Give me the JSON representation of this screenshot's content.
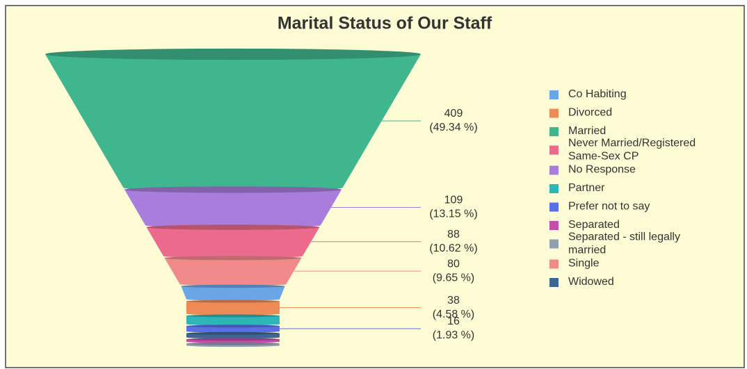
{
  "chart_data": {
    "type": "funnel",
    "title": "Marital Status of Our Staff",
    "categories": [
      "Married",
      "No Response",
      "Never Married/Registered Same-Sex CP",
      "Single",
      "Co Habiting",
      "Divorced",
      "Partner",
      "Prefer not to say",
      "Widowed",
      "Separated",
      "Separated - still legally married"
    ],
    "values": [
      409,
      109,
      88,
      80,
      40,
      38,
      25,
      16,
      12,
      7,
      5
    ],
    "percent_labels": [
      "(49.34 %)",
      "(13.15 %)",
      "(10.62 %)",
      "(9.65 %)",
      null,
      "(4.58 %)",
      null,
      "(1.93 %)",
      null,
      null,
      null
    ],
    "show_value": [
      true,
      true,
      true,
      true,
      false,
      true,
      false,
      true,
      false,
      false,
      false
    ],
    "colors": [
      "#3fb68d",
      "#a87ddb",
      "#ec6a8c",
      "#f08a8a",
      "#6aa5e5",
      "#ee8a56",
      "#2db5b8",
      "#5a6ee6",
      "#3d6694",
      "#c44daa",
      "#8fa0b0"
    ],
    "legend": true
  }
}
